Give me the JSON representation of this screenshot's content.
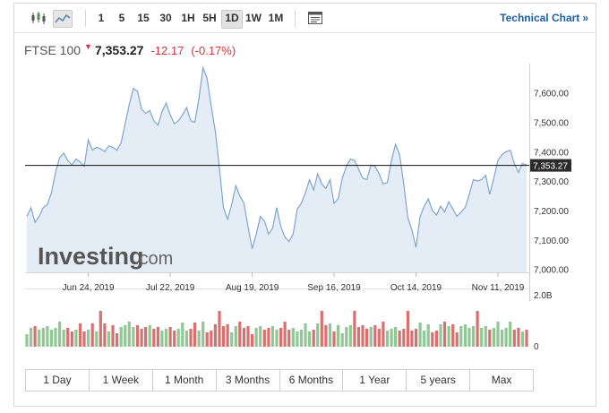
{
  "toolbar": {
    "chart_style_icons": [
      "candlestick-icon",
      "line-chart-icon"
    ],
    "timeframes": [
      "1",
      "5",
      "15",
      "30",
      "1H",
      "5H",
      "1D",
      "1W",
      "1M"
    ],
    "selected_timeframe": "1D",
    "settings_icon": "window-icon",
    "technical_chart_label": "Technical Chart",
    "technical_chart_arrow": "»"
  },
  "quote": {
    "name": "FTSE 100",
    "direction_icon": "down-arrow-icon",
    "direction_glyph": "▼",
    "price": "7,353.27",
    "change": "-12.17",
    "change_percent": "(-0.17%)"
  },
  "watermark": {
    "brand": "Investing",
    "suffix": ".com"
  },
  "colors": {
    "line": "#7fa6cf",
    "area": "#e4ecf5",
    "up_volume": "#90c795",
    "down_volume": "#d97070",
    "negative": "#d8343a",
    "link": "#1f5fa4"
  },
  "chart_data": {
    "type": "area",
    "title": "",
    "xlabel": "",
    "ylabel": "",
    "ylim": [
      6990,
      7690
    ],
    "y_ticks": [
      "7,600.00",
      "7,500.00",
      "7,400.00",
      "7,300.00",
      "7,200.00",
      "7,100.00",
      "7,000.00"
    ],
    "y_tick_values": [
      7600,
      7500,
      7400,
      7300,
      7200,
      7100,
      7000
    ],
    "x_ticks": [
      "Jun 24, 2019",
      "Jul 22, 2019",
      "Aug 19, 2019",
      "Sep 16, 2019",
      "Oct 14, 2019",
      "Nov 11, 2019"
    ],
    "x_tick_index": [
      15,
      35,
      55,
      75,
      95,
      115
    ],
    "last_price": 7353.27,
    "last_price_label": "7,353.27",
    "series": [
      {
        "values": [
          7180,
          7210,
          7160,
          7180,
          7210,
          7220,
          7260,
          7330,
          7380,
          7395,
          7370,
          7355,
          7375,
          7365,
          7350,
          7440,
          7405,
          7415,
          7410,
          7400,
          7420,
          7415,
          7405,
          7430,
          7495,
          7560,
          7615,
          7605,
          7545,
          7530,
          7540,
          7505,
          7490,
          7535,
          7565,
          7525,
          7495,
          7505,
          7525,
          7550,
          7505,
          7500,
          7580,
          7685,
          7650,
          7555,
          7470,
          7345,
          7210,
          7170,
          7220,
          7285,
          7250,
          7225,
          7145,
          7070,
          7120,
          7180,
          7165,
          7120,
          7140,
          7210,
          7145,
          7110,
          7095,
          7120,
          7205,
          7225,
          7260,
          7305,
          7270,
          7325,
          7290,
          7275,
          7305,
          7225,
          7240,
          7310,
          7350,
          7375,
          7370,
          7340,
          7310,
          7305,
          7355,
          7350,
          7325,
          7290,
          7295,
          7370,
          7425,
          7390,
          7290,
          7175,
          7135,
          7075,
          7180,
          7215,
          7240,
          7200,
          7185,
          7215,
          7195,
          7230,
          7205,
          7180,
          7195,
          7210,
          7255,
          7305,
          7300,
          7305,
          7320,
          7255,
          7310,
          7370,
          7390,
          7400,
          7405,
          7360,
          7330,
          7360,
          7355
        ],
        "volume_scale_label": "2.0B",
        "volume_zero_label": "0",
        "volume_max": 2.0
      }
    ]
  },
  "range_buttons": [
    "1 Day",
    "1 Week",
    "1 Month",
    "3 Months",
    "6 Months",
    "1 Year",
    "5 years",
    "Max"
  ]
}
